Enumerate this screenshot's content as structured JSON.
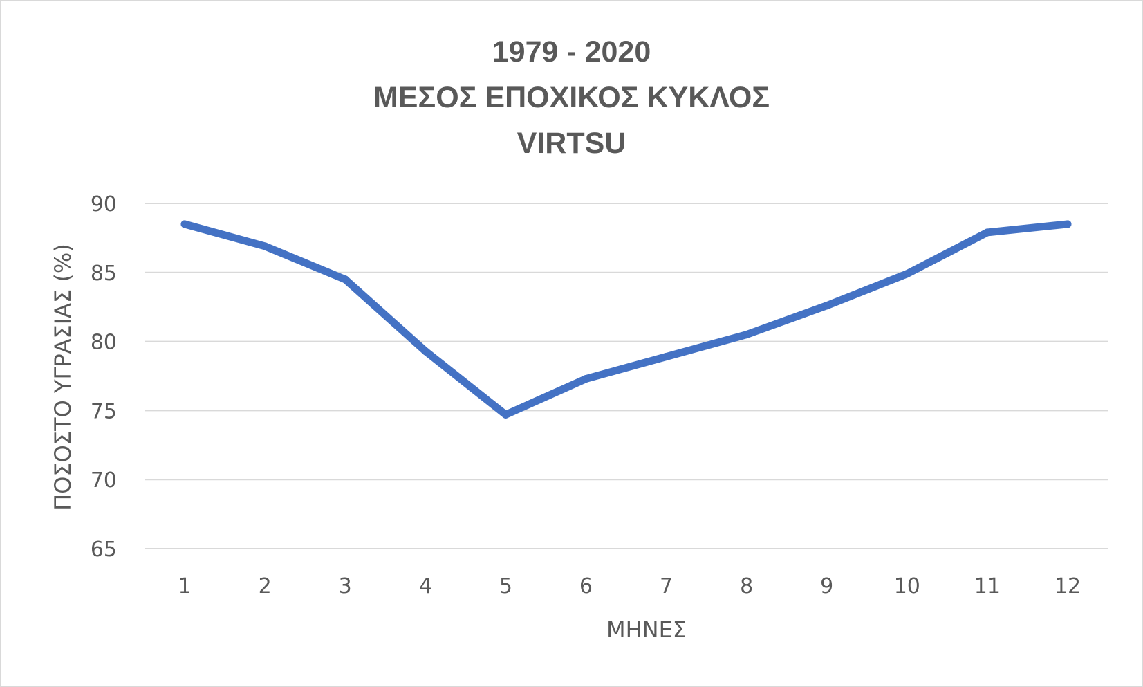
{
  "chart_data": {
    "type": "line",
    "title_lines": [
      "1979 - 2020",
      "ΜΕΣΟΣ ΕΠΟΧΙΚΟΣ ΚΥΚΛΟΣ",
      "VIRTSU"
    ],
    "xlabel": "ΜΗΝΕΣ",
    "ylabel": "ΠΟΣΟΣΤΟ ΥΓΡΑΣΙΑΣ (%)",
    "categories": [
      "1",
      "2",
      "3",
      "4",
      "5",
      "6",
      "7",
      "8",
      "9",
      "10",
      "11",
      "12"
    ],
    "series": [
      {
        "values": [
          88.5,
          86.9,
          84.5,
          79.3,
          74.7,
          77.3,
          78.9,
          80.5,
          82.6,
          84.9,
          87.9,
          88.5
        ]
      }
    ],
    "ylim": [
      65,
      90
    ],
    "yticks": [
      65,
      70,
      75,
      80,
      85,
      90
    ],
    "grid": true,
    "line_color": "#4472C4",
    "grid_color": "#d9d9d9",
    "text_color": "#595959"
  }
}
